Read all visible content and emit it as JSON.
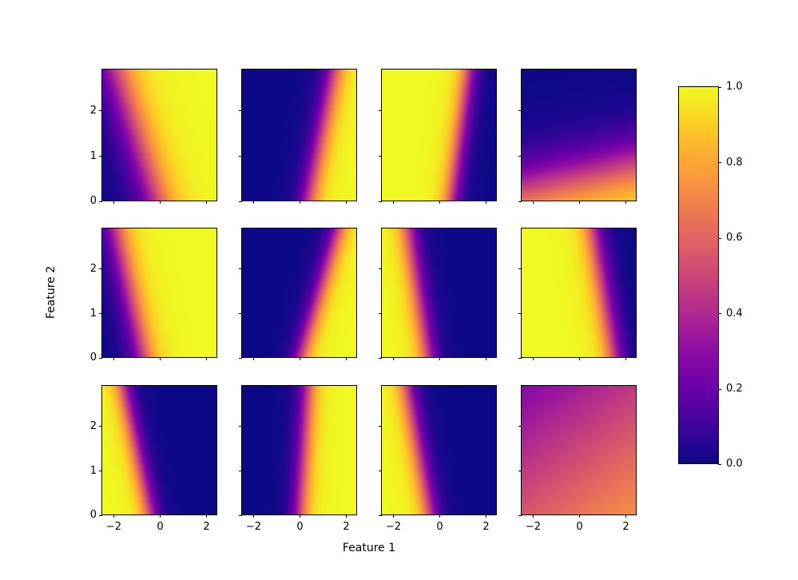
{
  "chart_data": {
    "type": "heatmap",
    "title": "",
    "xlabel": "Feature 1",
    "ylabel": "Feature 2",
    "grid": {
      "rows": 3,
      "cols": 4
    },
    "x_range": [
      -2.5,
      2.5
    ],
    "y_range": [
      0,
      2.9
    ],
    "x_ticks": [
      -2,
      0,
      2
    ],
    "x_tick_labels": [
      "−2",
      "0",
      "2"
    ],
    "y_ticks": [
      0,
      1,
      2
    ],
    "y_tick_labels": [
      "0",
      "1",
      "2"
    ],
    "value_range": [
      0,
      1
    ],
    "colormap": {
      "name": "plasma",
      "stops": [
        [
          0.0,
          "#0d0887"
        ],
        [
          0.1,
          "#41049d"
        ],
        [
          0.2,
          "#6a00a8"
        ],
        [
          0.3,
          "#8f0da4"
        ],
        [
          0.4,
          "#b12a90"
        ],
        [
          0.5,
          "#cc4778"
        ],
        [
          0.6,
          "#e16462"
        ],
        [
          0.7,
          "#f2844b"
        ],
        [
          0.8,
          "#fca636"
        ],
        [
          0.9,
          "#fcce25"
        ],
        [
          1.0,
          "#f0f921"
        ]
      ]
    },
    "colorbar": {
      "ticks": [
        0.0,
        0.2,
        0.4,
        0.6,
        0.8,
        1.0
      ],
      "tick_labels": [
        "0.0",
        "0.2",
        "0.4",
        "0.6",
        "0.8",
        "1.0"
      ],
      "position": "right"
    },
    "surface_model": "probability = sigmoid(a*x + b*y + c), colored with plasma colormap",
    "subplots": [
      {
        "row": 0,
        "col": 0,
        "surface": {
          "a": 2.0,
          "b": 1.23,
          "c": 0.18
        },
        "pattern": "soft gradient, dark lower-left to yellow right; boundary tilted from x=-1.9 (top) to x=-0.1 (bottom)"
      },
      {
        "row": 0,
        "col": 1,
        "surface": {
          "a": 3.5,
          "b": -1.37,
          "c": -1.5
        },
        "pattern": "mostly dark blue, yellow band at right; boundary from x=1.6 (top) to x=0.4 (bottom)"
      },
      {
        "row": 0,
        "col": 2,
        "surface": {
          "a": -4.0,
          "b": 1.05,
          "c": 2.1
        },
        "pattern": "yellow left two-thirds, dark right; boundary from x=1.3 (top) to x=0.5 (bottom)"
      },
      {
        "row": 0,
        "col": 3,
        "surface": {
          "a": 0.28,
          "b": -2.5,
          "c": 1.3
        },
        "pattern": "dark top fading to bright band along bottom edge, brighter toward bottom-right corner"
      },
      {
        "row": 1,
        "col": 0,
        "surface": {
          "a": 2.9,
          "b": 1.21,
          "c": 1.94
        },
        "pattern": "dark narrow left region, yellow right; boundary from x=-1.9 (top) to x=-0.7 (bottom)"
      },
      {
        "row": 1,
        "col": 1,
        "surface": {
          "a": 3.8,
          "b": -2.17,
          "c": -0.34
        },
        "pattern": "dark left, yellow right band; strongly tilted boundary from x=1.7 (top) to x=0.1 (bottom)"
      },
      {
        "row": 1,
        "col": 2,
        "surface": {
          "a": -3.7,
          "b": -1.1,
          "c": -1.85
        },
        "pattern": "yellow narrow band at left, dark right; boundary from x=-1.4 (top) to x=-0.5 (bottom)"
      },
      {
        "row": 1,
        "col": 3,
        "surface": {
          "a": -3.4,
          "b": -1.1,
          "c": 5.2
        },
        "pattern": "yellow dominant left, dark upper-right wedge; boundary from x=0.6 (top) to x=1.5 (bottom)"
      },
      {
        "row": 2,
        "col": 0,
        "surface": {
          "a": -4.0,
          "b": -1.66,
          "c": -1.66
        },
        "pattern": "yellow band at left, dark right; boundary from x=-1.6 (top) to x=-0.4 (bottom)"
      },
      {
        "row": 2,
        "col": 1,
        "surface": {
          "a": 4.0,
          "b": -0.5,
          "c": -0.2
        },
        "pattern": "dark left, yellow right band; boundary from x=0.4 (top) to x=0.05 (bottom)"
      },
      {
        "row": 2,
        "col": 2,
        "surface": {
          "a": -3.8,
          "b": -1.35,
          "c": -1.52
        },
        "pattern": "yellow band at left, dark right; boundary from x=-1.4 (top) to x=-0.4 (bottom)"
      },
      {
        "row": 2,
        "col": 3,
        "surface": {
          "a": 0.16,
          "b": -0.41,
          "c": 0.6
        },
        "pattern": "low-contrast smooth gradient: purple top-left to orange bottom-right, mid probabilities"
      }
    ]
  }
}
